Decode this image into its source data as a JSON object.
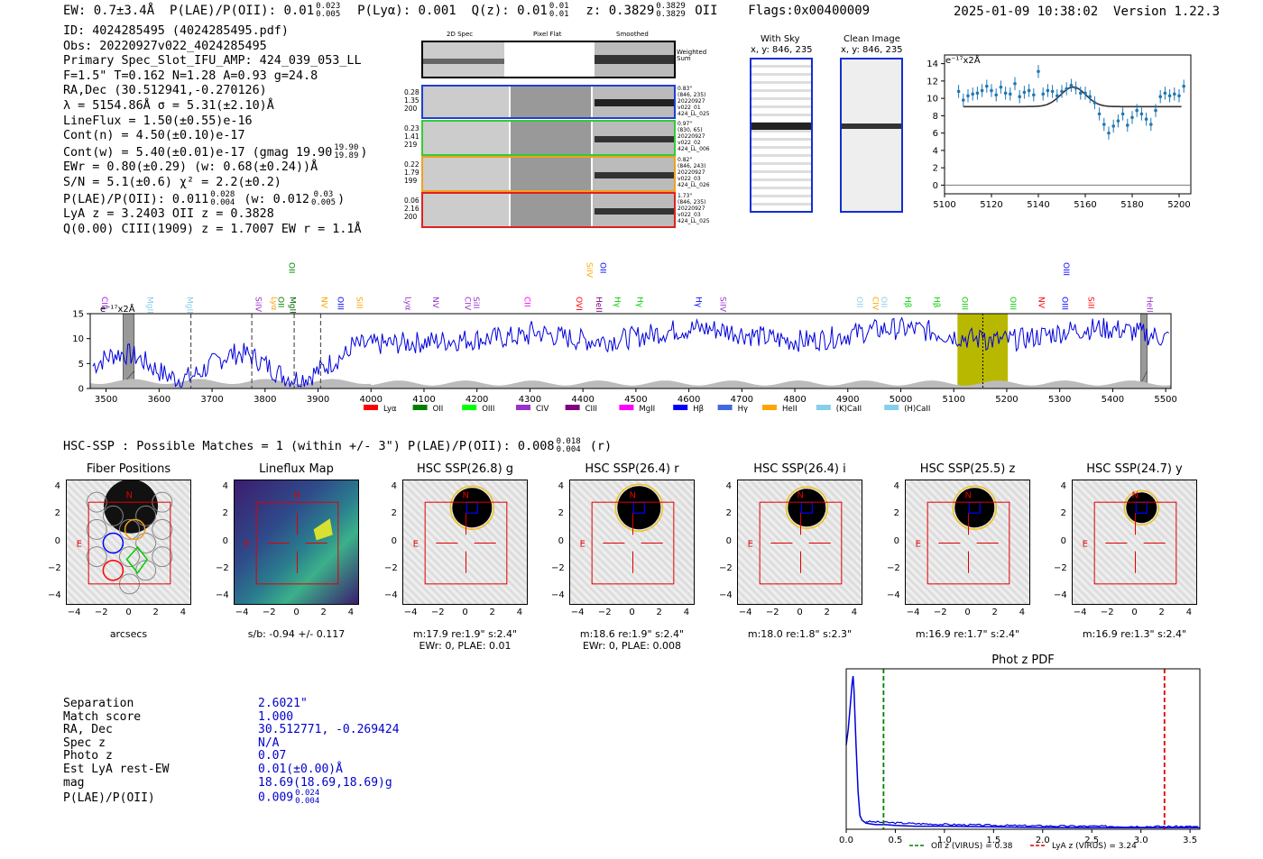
{
  "header": {
    "ew": "EW: 0.7±3.4Å",
    "plae_label": "P(LAE)/P(OII): 0.01",
    "plae_hi": "0.023",
    "plae_lo": "0.005",
    "plya": "P(Lyα): 0.001",
    "qz_label": "Q(z): 0.01",
    "qz_hi": "0.01",
    "qz_lo": "0.01",
    "z_label": "z: 0.3829",
    "z_hi": "0.3829",
    "z_lo": "0.3829",
    "z_line": "OII",
    "flags": "Flags:0x00400009",
    "datetime": "2025-01-09 10:38:02",
    "version": "Version 1.22.3"
  },
  "info": {
    "l1": "ID: 4024285495 (4024285495.pdf)",
    "l2": "Obs: 20220927v022_4024285495",
    "l3": "Primary Spec_Slot_IFU_AMP: 424_039_053_LL",
    "l4": "F=1.5\"  T=0.162  N=1.28  A=0.93  g=24.8",
    "l5": "RA,Dec (30.512941,-0.270126)",
    "l6": "λ = 5154.86Å  σ = 5.31(±2.10)Å",
    "l7": "LineFlux = 1.50(±0.55)e-16",
    "l8": "Cont(n) = 4.50(±0.10)e-17",
    "l9": "Cont(w) = 5.40(±0.01)e-17 (gmag 19.90",
    "l9_hi": "19.90",
    "l9_lo": "19.89",
    "l10": "EWr = 0.80(±0.29) (w: 0.68(±0.24))Å",
    "l11": "S/N = 5.1(±0.6)  χ² = 2.2(±0.2)",
    "l12a": "P(LAE)/P(OII): 0.011",
    "l12_hi": "0.028",
    "l12_lo": "0.004",
    "l12b": "(w: 0.012",
    "l12b_hi": "0.03",
    "l12b_lo": "0.005",
    "l13": "LyA z = 3.2403  OII z = 0.3828",
    "l14": "Q(0.00) CIII(1909) z = 1.7007  EW r = 1.1Å"
  },
  "cutouts": {
    "col1": "2D Spec",
    "col2": "Pixel Flat",
    "col3": "Smoothed",
    "weighted": "Weighted Sum",
    "rows": [
      {
        "n1": "0.28",
        "n2": "1.35",
        "n3": "200",
        "r1": "0.83\"",
        "r2": "(846, 235)",
        "r3": "20220927",
        "r4": "v022_01",
        "r5": "424_LL_025",
        "color": "#1f3fd0"
      },
      {
        "n1": "0.23",
        "n2": "1.41",
        "n3": "219",
        "r1": "0.97\"",
        "r2": "(830, 65)",
        "r3": "20220927",
        "r4": "v022_02",
        "r5": "424_LL_006",
        "color": "#33cc33"
      },
      {
        "n1": "0.22",
        "n2": "1.79",
        "n3": "199",
        "r1": "0.82\"",
        "r2": "(846, 243)",
        "r3": "20220927",
        "r4": "v022_03",
        "r5": "424_LL_026",
        "color": "#f0a020"
      },
      {
        "n1": "0.06",
        "n2": "2.16",
        "n3": "200",
        "r1": "1.73\"",
        "r2": "(846, 235)",
        "r3": "20220927",
        "r4": "v022_03",
        "r5": "424_LL_025",
        "color": "#e02020"
      }
    ]
  },
  "sky": {
    "with_sky": "With Sky",
    "with_sky_xy": "x, y: 846, 235",
    "clean": "Clean Image",
    "clean_xy": "x, y: 846, 235"
  },
  "zoom_chart": {
    "type": "scatter",
    "unit": "e⁻¹⁷x2Å",
    "xlim": [
      5100,
      5205
    ],
    "ylim": [
      -1,
      15
    ],
    "xticks": [
      5100,
      5120,
      5140,
      5160,
      5180,
      5200
    ],
    "yticks": [
      0,
      2,
      4,
      6,
      8,
      10,
      12,
      14
    ],
    "x": [
      5106,
      5108,
      5110,
      5112,
      5114,
      5116,
      5118,
      5120,
      5122,
      5124,
      5126,
      5128,
      5130,
      5132,
      5134,
      5136,
      5138,
      5140,
      5142,
      5144,
      5146,
      5148,
      5150,
      5152,
      5154,
      5156,
      5158,
      5160,
      5162,
      5164,
      5166,
      5168,
      5170,
      5172,
      5174,
      5176,
      5178,
      5180,
      5182,
      5184,
      5186,
      5188,
      5190,
      5192,
      5194,
      5196,
      5198,
      5200,
      5202
    ],
    "y": [
      10.8,
      9.8,
      10.3,
      10.5,
      10.6,
      10.9,
      11.4,
      10.9,
      10.4,
      11.3,
      10.6,
      10.5,
      11.7,
      10.2,
      10.7,
      10.9,
      10.4,
      13.1,
      10.5,
      10.9,
      10.8,
      10.3,
      10.8,
      11.1,
      11.5,
      11.2,
      10.6,
      10.6,
      10.2,
      9.5,
      8.2,
      7.0,
      6.0,
      6.8,
      7.4,
      8.2,
      6.9,
      7.8,
      8.6,
      8.2,
      7.6,
      7.0,
      8.6,
      10.2,
      10.6,
      10.3,
      10.5,
      10.3,
      11.4
    ],
    "fit_base": 9.05,
    "fit_peak": 11.3,
    "fit_center": 5154.86,
    "fit_sigma": 5.31
  },
  "spectrum_chart": {
    "type": "line",
    "unit": "e⁻¹⁷x2Å",
    "xlim": [
      3470,
      5510
    ],
    "ylim": [
      0,
      15
    ],
    "xticks": [
      3500,
      3600,
      3700,
      3800,
      3900,
      4000,
      4100,
      4200,
      4300,
      4400,
      4500,
      4600,
      4700,
      4800,
      4900,
      5000,
      5100,
      5200,
      5300,
      5400,
      5500
    ],
    "yticks": [
      0,
      5,
      10,
      15
    ],
    "highlight_range": [
      5107,
      5202
    ],
    "line_center": 5154.86,
    "dashed_markers": [
      3660,
      3775,
      3855,
      3905
    ],
    "masked_ranges": [
      [
        3532,
        3553
      ],
      [
        5453,
        5465
      ]
    ],
    "line_labels": [
      {
        "label": "CIII",
        "x": 3487,
        "color": "#a020f0",
        "row": 0
      },
      {
        "label": "MgII",
        "x": 3573,
        "color": "#87ceeb",
        "row": 0
      },
      {
        "label": "MgII",
        "x": 3648,
        "color": "#87ceeb",
        "row": 0
      },
      {
        "label": "SiIV",
        "x": 3777,
        "color": "#9932cc",
        "row": 0
      },
      {
        "label": "Lyα",
        "x": 3807,
        "color": "#ffa500",
        "row": 0
      },
      {
        "label": "OII",
        "x": 3820,
        "color": "#008000",
        "row": 0
      },
      {
        "label": "MgII",
        "x": 3842,
        "color": "#006400",
        "row": 0
      },
      {
        "label": "NV",
        "x": 3902,
        "color": "#ffa500",
        "row": 0
      },
      {
        "label": "OIII",
        "x": 3932,
        "color": "#0000ff",
        "row": 0
      },
      {
        "label": "SiII",
        "x": 3968,
        "color": "#ffa500",
        "row": 0
      },
      {
        "label": "Lyα",
        "x": 4060,
        "color": "#9932cc",
        "row": 0
      },
      {
        "label": "NV",
        "x": 4112,
        "color": "#9932cc",
        "row": 0
      },
      {
        "label": "CIV",
        "x": 4172,
        "color": "#9932cc",
        "row": 0
      },
      {
        "label": "SiII",
        "x": 4189,
        "color": "#9932cc",
        "row": 0
      },
      {
        "label": "CII",
        "x": 4285,
        "color": "#ff00ff",
        "row": 0
      },
      {
        "label": "OVI",
        "x": 4383,
        "color": "#ff0000",
        "row": 0
      },
      {
        "label": "HeII",
        "x": 4420,
        "color": "#800080",
        "row": 0
      },
      {
        "label": "Hγ",
        "x": 4455,
        "color": "#00cc00",
        "row": 0
      },
      {
        "label": "Hγ",
        "x": 4498,
        "color": "#00cc00",
        "row": 0
      },
      {
        "label": "Hγ",
        "x": 4608,
        "color": "#0000ff",
        "row": 0
      },
      {
        "label": "SiIV",
        "x": 4654,
        "color": "#9932cc",
        "row": 0
      },
      {
        "label": "OII",
        "x": 4912,
        "color": "#87ceeb",
        "row": 0
      },
      {
        "label": "CIV",
        "x": 4942,
        "color": "#ffa500",
        "row": 0
      },
      {
        "label": "OII",
        "x": 4958,
        "color": "#87ceeb",
        "row": 0
      },
      {
        "label": "Hβ",
        "x": 5003,
        "color": "#00cc00",
        "row": 0
      },
      {
        "label": "Hβ",
        "x": 5058,
        "color": "#00cc00",
        "row": 0
      },
      {
        "label": "OIII",
        "x": 5111,
        "color": "#00cc00",
        "row": 0
      },
      {
        "label": "OIII",
        "x": 5202,
        "color": "#00cc00",
        "row": 0
      },
      {
        "label": "NV",
        "x": 5255,
        "color": "#ff0000",
        "row": 0
      },
      {
        "label": "OIII",
        "x": 5300,
        "color": "#0000ff",
        "row": 0
      },
      {
        "label": "SiII",
        "x": 5349,
        "color": "#ff0000",
        "row": 0
      },
      {
        "label": "HeII",
        "x": 5460,
        "color": "#9932cc",
        "row": 0
      },
      {
        "label": "OII",
        "x": 3840,
        "color": "#008000",
        "row": 1
      },
      {
        "label": "SiIV",
        "x": 4402,
        "color": "#ffa500",
        "row": 1
      },
      {
        "label": "OII",
        "x": 4428,
        "color": "#0000ff",
        "row": 1
      },
      {
        "label": "OIII",
        "x": 5302,
        "color": "#0000ff",
        "row": 1
      }
    ],
    "legend": [
      {
        "label": "Lyα",
        "color": "#ff0000"
      },
      {
        "label": "OII",
        "color": "#008000"
      },
      {
        "label": "OIII",
        "color": "#00ff00"
      },
      {
        "label": "CIV",
        "color": "#9932cc"
      },
      {
        "label": "CIII",
        "color": "#800080"
      },
      {
        "label": "MgII",
        "color": "#ff00ff"
      },
      {
        "label": "Hβ",
        "color": "#0000ff"
      },
      {
        "label": "Hγ",
        "color": "#4169e1"
      },
      {
        "label": "HeII",
        "color": "#ffa500"
      },
      {
        "label": "(K)CaII",
        "color": "#87ceeb"
      },
      {
        "label": "(H)CaII",
        "color": "#87ceeb"
      }
    ]
  },
  "hsc": {
    "heading": "HSC-SSP : Possible Matches = 1 (within +/- 3\")  P(LAE)/P(OII): 0.008",
    "heading_hi": "0.018",
    "heading_lo": "0.004",
    "heading_tail": "(r)",
    "ticks": [
      "4",
      "2",
      "0",
      "−2",
      "−4"
    ],
    "panels": [
      {
        "title": "Fiber Positions",
        "label1": "arcsecs",
        "label2": ""
      },
      {
        "title": "Lineflux Map",
        "label1": "s/b: -0.94 +/- 0.117",
        "label2": ""
      },
      {
        "title": "HSC SSP(26.8) g",
        "label1": "m:17.9  re:1.9\"  s:2.4\"",
        "label2": "EWr: 0, PLAE: 0.01"
      },
      {
        "title": "HSC SSP(26.4) r",
        "label1": "m:18.6  re:1.9\"  s:2.4\"",
        "label2": "EWr: 0, PLAE: 0.008"
      },
      {
        "title": "HSC SSP(26.4) i",
        "label1": "m:18.0  re:1.8\"  s:2.3\"",
        "label2": ""
      },
      {
        "title": "HSC SSP(25.5) z",
        "label1": "m:16.9  re:1.7\"  s:2.4\"",
        "label2": ""
      },
      {
        "title": "HSC SSP(24.7) y",
        "label1": "m:16.9  re:1.3\"  s:2.4\"",
        "label2": ""
      }
    ]
  },
  "match_table": {
    "rows": [
      {
        "k": "Separation",
        "v": "2.6021\""
      },
      {
        "k": "Match score",
        "v": "1.000"
      },
      {
        "k": "RA, Dec",
        "v": "30.512771, -0.269424"
      },
      {
        "k": "Spec z",
        "v": "N/A"
      },
      {
        "k": "Photo z",
        "v": "0.07"
      },
      {
        "k": "Est LyA rest-EW",
        "v": "0.01(±0.00)Å"
      },
      {
        "k": "mag",
        "v": "18.69(18.69,18.69)g"
      },
      {
        "k": "P(LAE)/P(OII)",
        "v": "0.009"
      }
    ],
    "plae_hi": "0.024",
    "plae_lo": "0.004"
  },
  "photz_chart": {
    "type": "line",
    "title": "Phot z PDF",
    "xlim": [
      0,
      3.6
    ],
    "xticks": [
      0.0,
      0.5,
      1.0,
      1.5,
      2.0,
      2.5,
      3.0,
      3.5
    ],
    "xticklabels": [
      "0.0",
      "0.5",
      "1.0",
      "1.5",
      "2.0",
      "2.5",
      "3.0",
      "3.5"
    ],
    "oii_z": 0.38,
    "lya_z": 3.24,
    "legend_oii": "OII z (VIRUS) = 0.38",
    "legend_lya": "LyA z (VIRUS) = 3.24",
    "x": [
      0.0,
      0.02,
      0.04,
      0.06,
      0.07,
      0.08,
      0.1,
      0.12,
      0.14,
      0.16,
      0.18,
      0.2,
      0.25,
      0.3,
      0.4,
      0.5,
      0.7,
      1.0,
      1.5,
      2.0,
      2.5,
      3.0,
      3.5,
      3.6
    ],
    "y": [
      0.55,
      0.65,
      0.8,
      0.95,
      1.0,
      0.9,
      0.55,
      0.25,
      0.09,
      0.06,
      0.05,
      0.04,
      0.035,
      0.03,
      0.03,
      0.025,
      0.02,
      0.02,
      0.015,
      0.012,
      0.01,
      0.01,
      0.01,
      0.01
    ]
  }
}
